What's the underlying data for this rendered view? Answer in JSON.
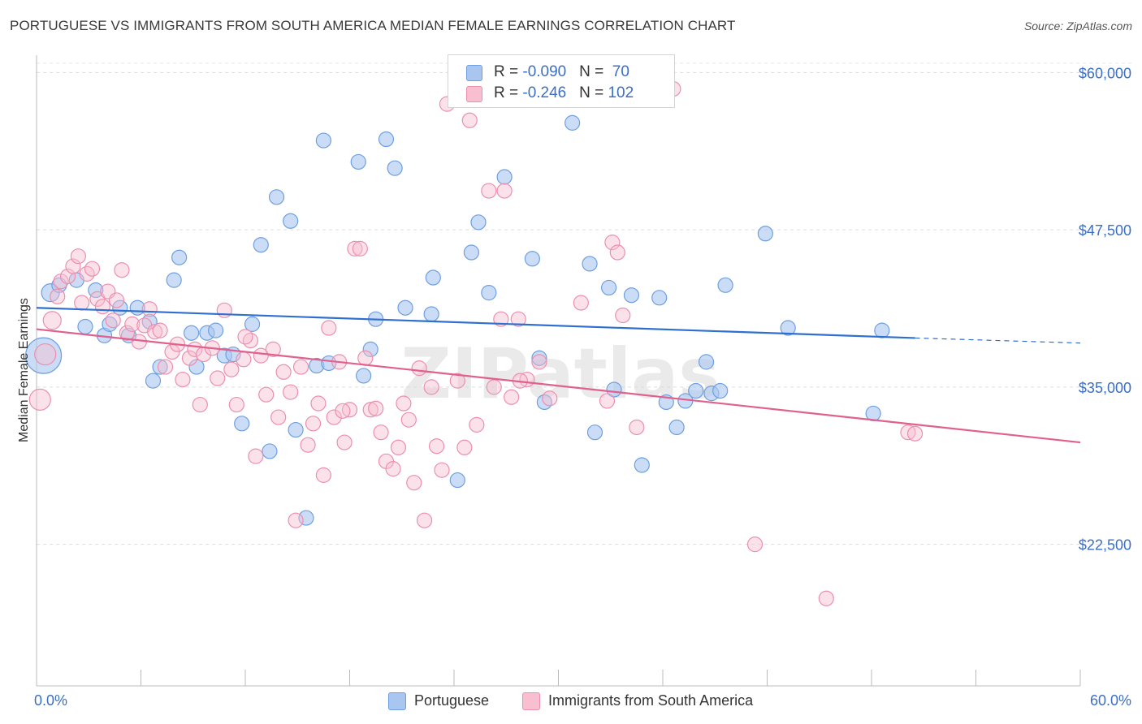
{
  "title": "PORTUGUESE VS IMMIGRANTS FROM SOUTH AMERICA MEDIAN FEMALE EARNINGS CORRELATION CHART",
  "source": "Source: ZipAtlas.com",
  "watermark": "ZIPatlas",
  "colors": {
    "blue_fill": "#a9c6f0",
    "blue_stroke": "#6f9fe0",
    "blue_line": "#2f6fd0",
    "pink_fill": "#f7bfd0",
    "pink_stroke": "#ec8faf",
    "pink_line": "#e0608e",
    "label": "#3b6fc4"
  },
  "legend": {
    "rows": [
      {
        "r_label": "R = ",
        "r_value": "-0.090",
        "n_label": "N = ",
        "n_value": " 70"
      },
      {
        "r_label": "R = ",
        "r_value": "-0.246",
        "n_label": "N = ",
        "n_value": "102"
      }
    ]
  },
  "bottom_legend": {
    "series1": "Portuguese",
    "series2": "Immigrants from South America"
  },
  "chart_data": {
    "type": "scatter",
    "title": "PORTUGUESE VS IMMIGRANTS FROM SOUTH AMERICA MEDIAN FEMALE EARNINGS CORRELATION CHART",
    "xlabel": "",
    "ylabel": "Median Female Earnings",
    "xlim": [
      0,
      60
    ],
    "ylim": [
      11250,
      61250
    ],
    "x_tick_labels": [
      "0.0%",
      "60.0%"
    ],
    "y_ticks": [
      22500,
      35000,
      47500,
      60000
    ],
    "y_tick_labels": [
      "$22,500",
      "$35,000",
      "$47,500",
      "$60,000"
    ],
    "grid": true,
    "series": [
      {
        "name": "Portuguese",
        "r": -0.09,
        "n": 70,
        "trend": {
          "x0": 0,
          "y0": 41300,
          "x1": 50.5,
          "y1": 38900,
          "dash_to_x": 60,
          "dash_to_y": 38500
        },
        "points": [
          [
            0.4,
            37500,
            22
          ],
          [
            0.8,
            42500,
            11
          ],
          [
            1.3,
            43100,
            9
          ],
          [
            2.3,
            43500,
            9
          ],
          [
            2.8,
            39800,
            9
          ],
          [
            3.4,
            42700,
            9
          ],
          [
            3.9,
            39100,
            9
          ],
          [
            4.2,
            40000,
            9
          ],
          [
            4.8,
            41300,
            9
          ],
          [
            5.3,
            39100,
            9
          ],
          [
            5.8,
            41300,
            9
          ],
          [
            6.5,
            40200,
            9
          ],
          [
            6.7,
            35500,
            9
          ],
          [
            7.1,
            36600,
            9
          ],
          [
            7.9,
            43500,
            9
          ],
          [
            8.2,
            45300,
            9
          ],
          [
            8.9,
            39300,
            9
          ],
          [
            9.2,
            36600,
            9
          ],
          [
            9.8,
            39300,
            9
          ],
          [
            10.3,
            39500,
            9
          ],
          [
            10.8,
            37500,
            9
          ],
          [
            11.3,
            37600,
            9
          ],
          [
            11.8,
            32100,
            9
          ],
          [
            12.4,
            40000,
            9
          ],
          [
            12.9,
            46300,
            9
          ],
          [
            13.4,
            29900,
            9
          ],
          [
            13.8,
            50100,
            9
          ],
          [
            14.6,
            48200,
            9
          ],
          [
            14.9,
            31600,
            9
          ],
          [
            15.5,
            24600,
            9
          ],
          [
            16.1,
            36700,
            9
          ],
          [
            16.5,
            54600,
            9
          ],
          [
            16.8,
            36900,
            9
          ],
          [
            18.5,
            52900,
            9
          ],
          [
            18.8,
            35900,
            9
          ],
          [
            19.2,
            38000,
            9
          ],
          [
            19.5,
            40400,
            9
          ],
          [
            20.1,
            54700,
            9
          ],
          [
            20.6,
            52400,
            9
          ],
          [
            21.2,
            41300,
            9
          ],
          [
            22.7,
            40800,
            9
          ],
          [
            22.8,
            43700,
            9
          ],
          [
            24.2,
            27600,
            9
          ],
          [
            25.0,
            45700,
            9
          ],
          [
            25.4,
            48100,
            9
          ],
          [
            26.0,
            42500,
            9
          ],
          [
            26.9,
            51700,
            9
          ],
          [
            28.5,
            45200,
            9
          ],
          [
            28.9,
            37300,
            9
          ],
          [
            29.2,
            33800,
            9
          ],
          [
            31.8,
            44800,
            9
          ],
          [
            32.1,
            31400,
            9
          ],
          [
            32.9,
            42900,
            9
          ],
          [
            33.2,
            34800,
            9
          ],
          [
            34.2,
            42300,
            9
          ],
          [
            34.8,
            28800,
            9
          ],
          [
            35.8,
            42100,
            9
          ],
          [
            36.2,
            33800,
            9
          ],
          [
            36.8,
            31800,
            9
          ],
          [
            37.3,
            33900,
            9
          ],
          [
            37.9,
            34700,
            9
          ],
          [
            38.5,
            37000,
            9
          ],
          [
            38.8,
            34500,
            9
          ],
          [
            39.3,
            34700,
            9
          ],
          [
            39.6,
            43100,
            9
          ],
          [
            41.9,
            47200,
            9
          ],
          [
            43.2,
            39700,
            9
          ],
          [
            48.1,
            32900,
            9
          ],
          [
            48.6,
            39500,
            9
          ],
          [
            30.8,
            56000,
            9
          ]
        ]
      },
      {
        "name": "Immigrants from South America",
        "r": -0.246,
        "n": 102,
        "trend": {
          "x0": 0,
          "y0": 39600,
          "x1": 60,
          "y1": 30600
        },
        "points": [
          [
            0.2,
            34000,
            13
          ],
          [
            0.5,
            37600,
            13
          ],
          [
            0.9,
            40300,
            11
          ],
          [
            1.2,
            42200,
            9
          ],
          [
            1.4,
            43400,
            9
          ],
          [
            1.8,
            43800,
            9
          ],
          [
            2.1,
            44600,
            9
          ],
          [
            2.4,
            45400,
            9
          ],
          [
            2.6,
            41700,
            9
          ],
          [
            2.9,
            44000,
            9
          ],
          [
            3.2,
            44400,
            9
          ],
          [
            3.5,
            42000,
            9
          ],
          [
            3.8,
            41400,
            9
          ],
          [
            4.1,
            42600,
            9
          ],
          [
            4.4,
            40300,
            9
          ],
          [
            4.6,
            41900,
            9
          ],
          [
            4.9,
            44300,
            9
          ],
          [
            5.2,
            39300,
            9
          ],
          [
            5.5,
            40000,
            9
          ],
          [
            5.9,
            38600,
            9
          ],
          [
            6.2,
            39900,
            9
          ],
          [
            6.5,
            41200,
            9
          ],
          [
            6.8,
            39400,
            9
          ],
          [
            7.1,
            39500,
            9
          ],
          [
            7.4,
            36600,
            9
          ],
          [
            7.8,
            37800,
            9
          ],
          [
            8.1,
            38400,
            9
          ],
          [
            8.4,
            35600,
            9
          ],
          [
            8.8,
            37300,
            9
          ],
          [
            9.1,
            38000,
            9
          ],
          [
            9.4,
            33600,
            9
          ],
          [
            9.6,
            37600,
            9
          ],
          [
            10.1,
            38100,
            9
          ],
          [
            10.4,
            35700,
            9
          ],
          [
            10.8,
            41100,
            9
          ],
          [
            11.2,
            36400,
            9
          ],
          [
            11.5,
            33600,
            9
          ],
          [
            11.9,
            37200,
            9
          ],
          [
            12.3,
            38700,
            9
          ],
          [
            12.6,
            29500,
            9
          ],
          [
            12.9,
            37500,
            9
          ],
          [
            13.2,
            34400,
            9
          ],
          [
            13.6,
            38000,
            9
          ],
          [
            13.9,
            32600,
            9
          ],
          [
            14.2,
            36200,
            9
          ],
          [
            14.6,
            34600,
            9
          ],
          [
            14.9,
            24400,
            9
          ],
          [
            15.2,
            36600,
            9
          ],
          [
            15.6,
            30400,
            9
          ],
          [
            15.9,
            32100,
            9
          ],
          [
            16.2,
            33700,
            9
          ],
          [
            16.5,
            28000,
            9
          ],
          [
            16.8,
            39700,
            9
          ],
          [
            17.1,
            32600,
            9
          ],
          [
            17.4,
            37000,
            9
          ],
          [
            17.7,
            30600,
            9
          ],
          [
            18.0,
            33200,
            9
          ],
          [
            18.3,
            46000,
            9
          ],
          [
            18.6,
            46000,
            9
          ],
          [
            18.9,
            37300,
            9
          ],
          [
            19.2,
            33200,
            9
          ],
          [
            19.5,
            33300,
            9
          ],
          [
            19.8,
            31400,
            9
          ],
          [
            20.1,
            29100,
            9
          ],
          [
            20.5,
            28500,
            9
          ],
          [
            20.8,
            30200,
            9
          ],
          [
            21.1,
            33700,
            9
          ],
          [
            21.4,
            32400,
            9
          ],
          [
            21.7,
            27400,
            9
          ],
          [
            22.0,
            36500,
            9
          ],
          [
            22.3,
            24400,
            9
          ],
          [
            22.7,
            35000,
            9
          ],
          [
            23.0,
            30300,
            9
          ],
          [
            23.3,
            28400,
            9
          ],
          [
            23.6,
            57500,
            9
          ],
          [
            24.2,
            35500,
            9
          ],
          [
            24.6,
            30200,
            9
          ],
          [
            24.9,
            56200,
            9
          ],
          [
            25.3,
            32000,
            9
          ],
          [
            26.0,
            50600,
            9
          ],
          [
            26.3,
            35000,
            9
          ],
          [
            26.7,
            40400,
            9
          ],
          [
            26.9,
            50600,
            9
          ],
          [
            27.3,
            34200,
            9
          ],
          [
            27.7,
            40400,
            9
          ],
          [
            28.2,
            35600,
            9
          ],
          [
            28.9,
            37000,
            9
          ],
          [
            29.5,
            34100,
            9
          ],
          [
            31.3,
            41700,
            9
          ],
          [
            32.8,
            33900,
            9
          ],
          [
            33.1,
            46500,
            9
          ],
          [
            33.4,
            45700,
            9
          ],
          [
            33.7,
            40700,
            9
          ],
          [
            34.5,
            31800,
            9
          ],
          [
            36.6,
            58700,
            9
          ],
          [
            41.3,
            22500,
            9
          ],
          [
            45.4,
            18200,
            9
          ],
          [
            50.1,
            31400,
            9
          ],
          [
            50.5,
            31300,
            9
          ],
          [
            27.8,
            35500,
            9
          ],
          [
            17.6,
            33100,
            9
          ],
          [
            12.0,
            39000,
            9
          ]
        ]
      }
    ]
  }
}
